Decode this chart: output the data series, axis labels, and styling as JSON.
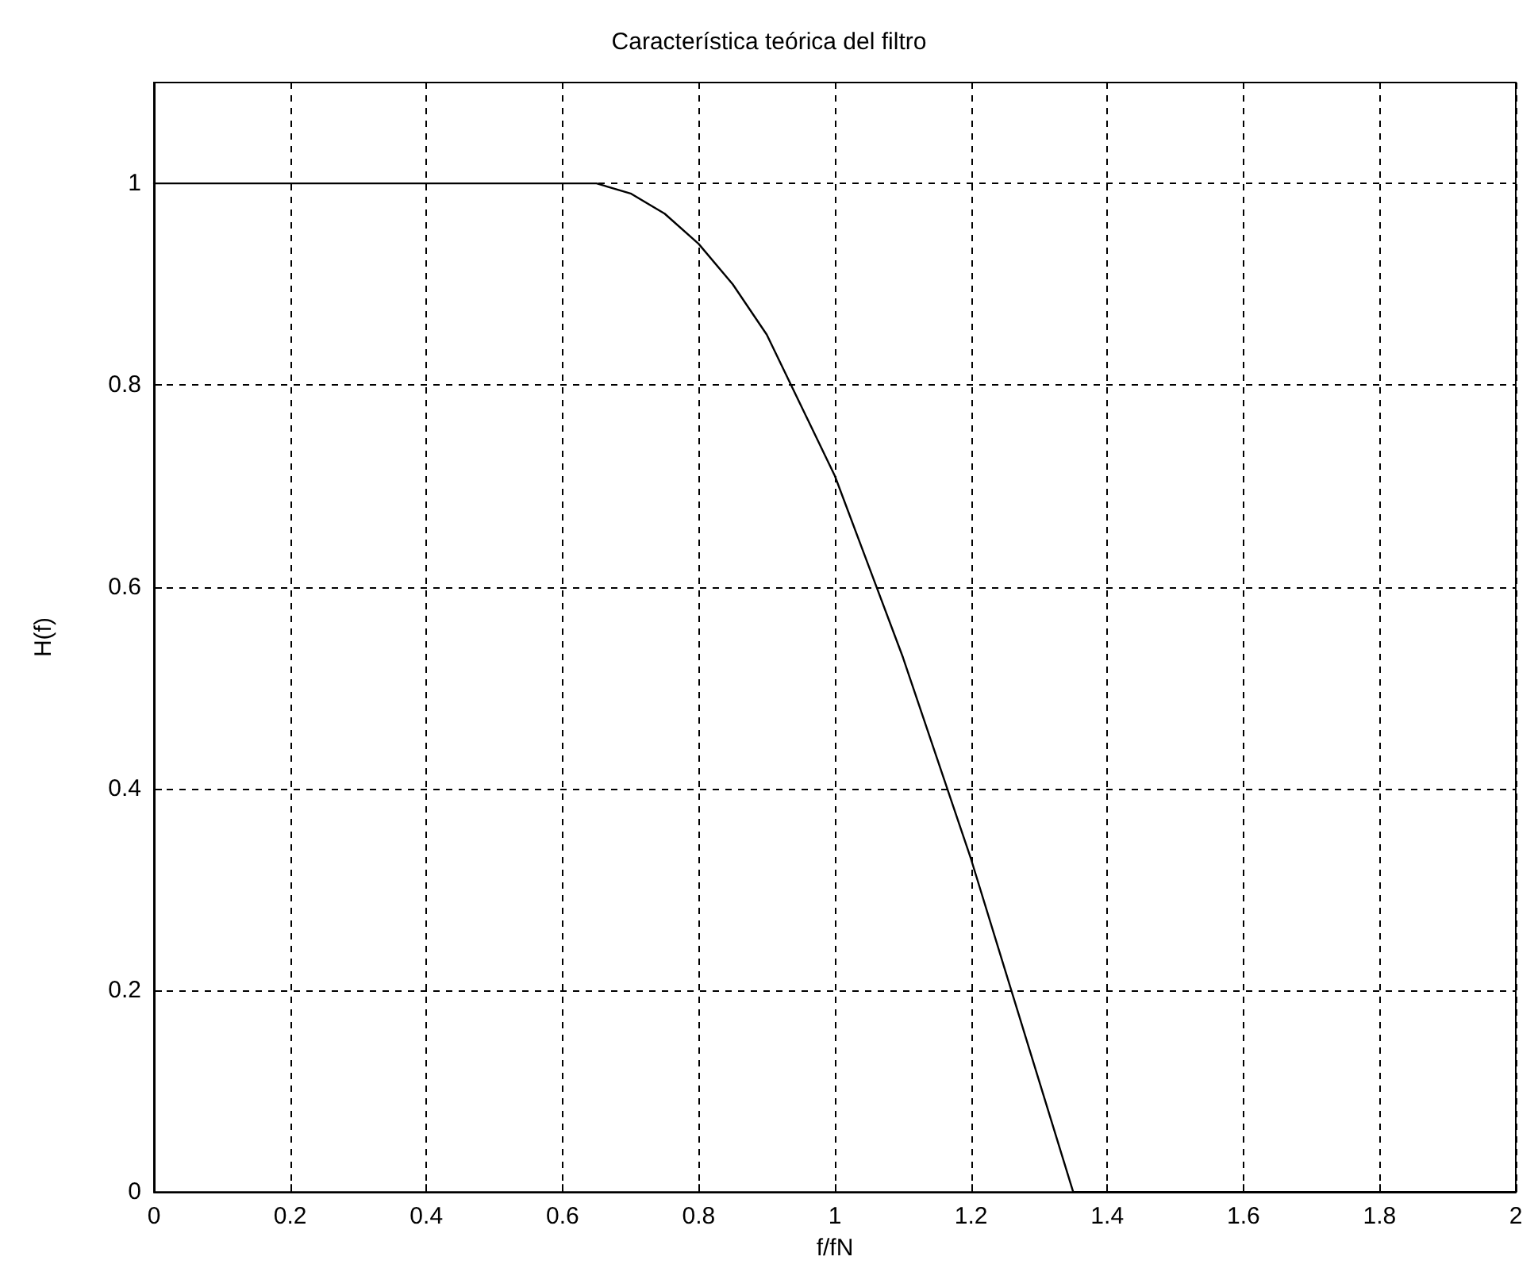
{
  "chart_data": {
    "type": "line",
    "title": "Característica teórica del filtro",
    "xlabel": "f/fN",
    "ylabel": "H(f)",
    "x": [
      0,
      0.65,
      0.7,
      0.75,
      0.8,
      0.85,
      0.9,
      0.95,
      1.0,
      1.05,
      1.1,
      1.15,
      1.2,
      1.25,
      1.3,
      1.35,
      2
    ],
    "series": [
      {
        "color": "#000000",
        "values": [
          1,
          1,
          0.99,
          0.97,
          0.94,
          0.9,
          0.85,
          0.78,
          0.71,
          0.62,
          0.53,
          0.43,
          0.33,
          0.22,
          0.11,
          0,
          0
        ]
      }
    ],
    "xlim": [
      0,
      2
    ],
    "xticks": [
      0,
      0.2,
      0.4,
      0.6,
      0.8,
      1,
      1.2,
      1.4,
      1.6,
      1.8,
      2
    ],
    "ylim": [
      0,
      1.1
    ],
    "yticks": [
      0,
      0.2,
      0.4,
      0.6,
      0.8,
      1
    ],
    "grid": true,
    "marker": "none",
    "line_style": "solid"
  }
}
